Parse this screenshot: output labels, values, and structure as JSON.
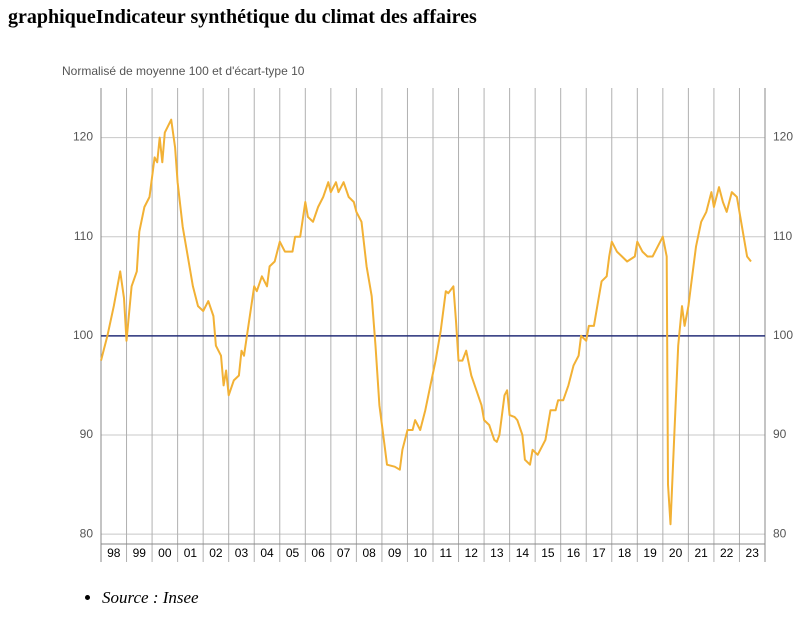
{
  "chart_data": {
    "type": "line",
    "title": "graphiqueIndicateur synthétique du climat des affaires",
    "subtitle": "Normalisé de moyenne 100 et d'écart-type 10",
    "color": "#f2b135",
    "reference_line": 100,
    "reference_color": "#27307a",
    "grid": true,
    "xlim": [
      1998,
      2024
    ],
    "xticks": [
      {
        "value": 1998,
        "label": "98"
      },
      {
        "value": 1999,
        "label": "99"
      },
      {
        "value": 2000,
        "label": "00"
      },
      {
        "value": 2001,
        "label": "01"
      },
      {
        "value": 2002,
        "label": "02"
      },
      {
        "value": 2003,
        "label": "03"
      },
      {
        "value": 2004,
        "label": "04"
      },
      {
        "value": 2005,
        "label": "05"
      },
      {
        "value": 2006,
        "label": "06"
      },
      {
        "value": 2007,
        "label": "07"
      },
      {
        "value": 2008,
        "label": "08"
      },
      {
        "value": 2009,
        "label": "09"
      },
      {
        "value": 2010,
        "label": "10"
      },
      {
        "value": 2011,
        "label": "11"
      },
      {
        "value": 2012,
        "label": "12"
      },
      {
        "value": 2013,
        "label": "13"
      },
      {
        "value": 2014,
        "label": "14"
      },
      {
        "value": 2015,
        "label": "15"
      },
      {
        "value": 2016,
        "label": "16"
      },
      {
        "value": 2017,
        "label": "17"
      },
      {
        "value": 2018,
        "label": "18"
      },
      {
        "value": 2019,
        "label": "19"
      },
      {
        "value": 2020,
        "label": "20"
      },
      {
        "value": 2021,
        "label": "21"
      },
      {
        "value": 2022,
        "label": "22"
      },
      {
        "value": 2023,
        "label": "23"
      }
    ],
    "ylim": [
      79,
      125
    ],
    "yticks": [
      80,
      90,
      100,
      110,
      120
    ],
    "x": [
      1998.0,
      1998.25,
      1998.5,
      1998.75,
      1998.9,
      1999.0,
      1999.2,
      1999.4,
      1999.5,
      1999.7,
      1999.9,
      2000.1,
      2000.2,
      2000.3,
      2000.4,
      2000.5,
      2000.75,
      2000.9,
      2001.0,
      2001.2,
      2001.4,
      2001.6,
      2001.8,
      2002.0,
      2002.2,
      2002.4,
      2002.5,
      2002.7,
      2002.8,
      2002.9,
      2003.0,
      2003.2,
      2003.4,
      2003.5,
      2003.6,
      2003.8,
      2004.0,
      2004.1,
      2004.3,
      2004.5,
      2004.6,
      2004.8,
      2005.0,
      2005.2,
      2005.5,
      2005.6,
      2005.8,
      2006.0,
      2006.1,
      2006.3,
      2006.5,
      2006.7,
      2006.9,
      2007.0,
      2007.2,
      2007.3,
      2007.5,
      2007.7,
      2007.9,
      2008.0,
      2008.2,
      2008.4,
      2008.6,
      2008.75,
      2008.9,
      2009.1,
      2009.2,
      2009.5,
      2009.7,
      2009.8,
      2010.0,
      2010.2,
      2010.3,
      2010.5,
      2010.7,
      2010.9,
      2011.1,
      2011.3,
      2011.5,
      2011.6,
      2011.8,
      2011.9,
      2012.0,
      2012.15,
      2012.3,
      2012.5,
      2012.7,
      2012.9,
      2013.0,
      2013.2,
      2013.4,
      2013.5,
      2013.6,
      2013.8,
      2013.9,
      2014.0,
      2014.2,
      2014.3,
      2014.5,
      2014.6,
      2014.8,
      2014.9,
      2015.1,
      2015.3,
      2015.4,
      2015.6,
      2015.8,
      2015.9,
      2016.1,
      2016.3,
      2016.5,
      2016.7,
      2016.8,
      2017.0,
      2017.1,
      2017.3,
      2017.5,
      2017.6,
      2017.8,
      2017.9,
      2018.0,
      2018.2,
      2018.4,
      2018.6,
      2018.9,
      2019.0,
      2019.2,
      2019.4,
      2019.6,
      2019.8,
      2020.0,
      2020.15,
      2020.2,
      2020.3,
      2020.45,
      2020.6,
      2020.75,
      2020.85,
      2021.0,
      2021.1,
      2021.3,
      2021.5,
      2021.7,
      2021.9,
      2022.0,
      2022.2,
      2022.35,
      2022.5,
      2022.7,
      2022.9,
      2023.1,
      2023.3,
      2023.45
    ],
    "values": [
      97.5,
      100,
      103,
      106.5,
      103.8,
      99.5,
      105,
      106.5,
      110.5,
      113,
      114,
      118,
      117.5,
      120,
      117.5,
      120.5,
      121.8,
      119,
      115.5,
      111,
      108,
      105,
      103,
      102.5,
      103.5,
      102,
      99,
      98,
      95,
      96.5,
      94,
      95.5,
      96,
      98.5,
      98,
      101.5,
      105,
      104.5,
      106,
      105,
      107,
      107.5,
      109.5,
      108.5,
      108.5,
      110,
      110,
      113.5,
      112,
      111.5,
      113,
      114,
      115.5,
      114.5,
      115.5,
      114.5,
      115.5,
      114,
      113.5,
      112.5,
      111.5,
      107,
      104,
      99,
      93,
      89,
      87,
      86.8,
      86.5,
      88.5,
      90.5,
      90.5,
      91.5,
      90.5,
      92.5,
      95,
      97.5,
      100.5,
      104.5,
      104.3,
      105,
      101.5,
      97.5,
      97.5,
      98.5,
      96,
      94.5,
      93,
      91.5,
      91,
      89.5,
      89.3,
      90,
      94,
      94.5,
      92,
      91.8,
      91.5,
      90,
      87.5,
      87,
      88.5,
      88,
      89,
      89.5,
      92.5,
      92.5,
      93.5,
      93.5,
      95,
      97,
      98,
      100,
      99.5,
      101,
      101,
      104,
      105.5,
      106,
      108,
      109.5,
      108.5,
      108,
      107.5,
      108,
      109.5,
      108.5,
      108,
      108,
      109,
      110,
      108,
      85,
      81,
      90,
      99,
      103,
      101,
      103,
      105,
      109,
      111.5,
      112.5,
      114.5,
      113,
      115,
      113.5,
      112.5,
      114.5,
      114,
      111,
      108,
      107.5
    ]
  },
  "footer": {
    "source": "Source : Insee"
  }
}
